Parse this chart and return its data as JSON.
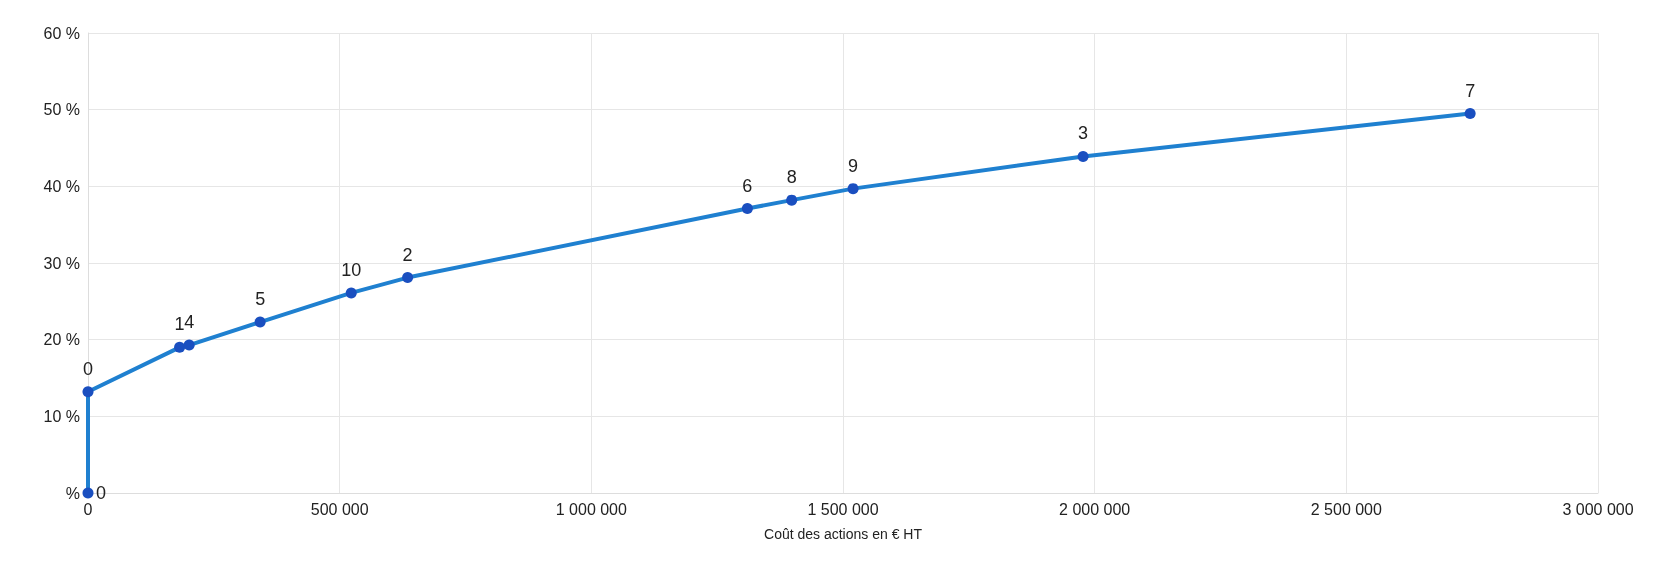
{
  "chart_data": {
    "type": "line",
    "xlabel": "Coût des actions en € HT",
    "x": [
      0,
      0,
      182000,
      201000,
      342000,
      523000,
      635000,
      1310000,
      1398000,
      1520000,
      1977000,
      2746000
    ],
    "series": [
      {
        "color": "#1f80d0",
        "values": [
          0,
          13.2,
          19.0,
          19.3,
          22.3,
          26.1,
          28.1,
          37.1,
          38.2,
          39.7,
          43.9,
          49.5
        ]
      }
    ],
    "annotations": [
      {
        "text": "0",
        "x": 0,
        "y": 0
      },
      {
        "text": "0",
        "x": 0,
        "y": 13.2
      },
      {
        "text": "1",
        "x": 182000,
        "y": 19.0
      },
      {
        "text": "4",
        "x": 201000,
        "y": 19.3
      },
      {
        "text": "5",
        "x": 342000,
        "y": 22.3
      },
      {
        "text": "10",
        "x": 523000,
        "y": 26.1
      },
      {
        "text": "2",
        "x": 635000,
        "y": 28.1
      },
      {
        "text": "6",
        "x": 1310000,
        "y": 37.1
      },
      {
        "text": "8",
        "x": 1398000,
        "y": 38.2
      },
      {
        "text": "9",
        "x": 1520000,
        "y": 39.7
      },
      {
        "text": "3",
        "x": 1977000,
        "y": 43.9
      },
      {
        "text": "7",
        "x": 2746000,
        "y": 49.5
      }
    ],
    "xlim": [
      0,
      3000000
    ],
    "xticks": [
      {
        "value": 0,
        "label": "0"
      },
      {
        "value": 500000,
        "label": "500 000"
      },
      {
        "value": 1000000,
        "label": "1 000 000"
      },
      {
        "value": 1500000,
        "label": "1 500 000"
      },
      {
        "value": 2000000,
        "label": "2 000 000"
      },
      {
        "value": 2500000,
        "label": "2 500 000"
      },
      {
        "value": 3000000,
        "label": "3 000 000"
      }
    ],
    "ylim": [
      0,
      60
    ],
    "yticks": [
      {
        "value": 0,
        "label": "%"
      },
      {
        "value": 10,
        "label": "10 %"
      },
      {
        "value": 20,
        "label": "20 %"
      },
      {
        "value": 30,
        "label": "30 %"
      },
      {
        "value": 40,
        "label": "40 %"
      },
      {
        "value": 50,
        "label": "50 %"
      },
      {
        "value": 60,
        "label": "60 %"
      }
    ],
    "grid": true,
    "marker": "circle",
    "line_style": "solid"
  }
}
